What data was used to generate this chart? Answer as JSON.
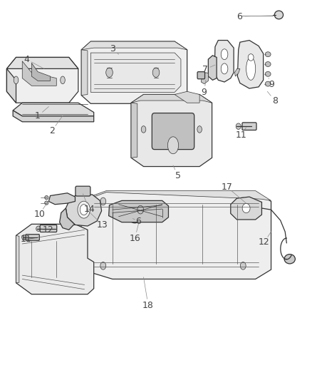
{
  "bg_color": "#ffffff",
  "line_color": "#333333",
  "label_color": "#444444",
  "thin_line": "#555555",
  "lw_main": 0.9,
  "lw_thin": 0.5,
  "lw_leader": 0.6,
  "font_size": 9,
  "upper_labels": {
    "4": [
      0.085,
      0.845,
      0.16,
      0.8
    ],
    "1": [
      0.125,
      0.695,
      0.155,
      0.71
    ],
    "2": [
      0.165,
      0.655,
      0.185,
      0.67
    ],
    "3": [
      0.375,
      0.875,
      0.38,
      0.855
    ],
    "5": [
      0.575,
      0.538,
      0.555,
      0.558
    ],
    "6": [
      0.77,
      0.96,
      0.855,
      0.955
    ],
    "7": [
      0.66,
      0.815,
      0.695,
      0.808
    ],
    "9a": [
      0.66,
      0.757,
      0.685,
      0.762
    ],
    "8": [
      0.88,
      0.735,
      0.87,
      0.748
    ],
    "9b": [
      0.87,
      0.775,
      0.88,
      0.778
    ],
    "11": [
      0.775,
      0.645,
      0.8,
      0.655
    ]
  },
  "lower_labels": {
    "10": [
      0.13,
      0.435,
      0.165,
      0.442
    ],
    "14": [
      0.285,
      0.448,
      0.295,
      0.445
    ],
    "6l": [
      0.445,
      0.418,
      0.44,
      0.422
    ],
    "12a": [
      0.155,
      0.395,
      0.13,
      0.398
    ],
    "11l": [
      0.085,
      0.37,
      0.095,
      0.378
    ],
    "13": [
      0.325,
      0.408,
      0.31,
      0.406
    ],
    "16": [
      0.435,
      0.372,
      0.44,
      0.378
    ],
    "12b": [
      0.845,
      0.363,
      0.875,
      0.35
    ],
    "17": [
      0.725,
      0.508,
      0.72,
      0.368
    ],
    "18": [
      0.475,
      0.195,
      0.46,
      0.205
    ]
  }
}
